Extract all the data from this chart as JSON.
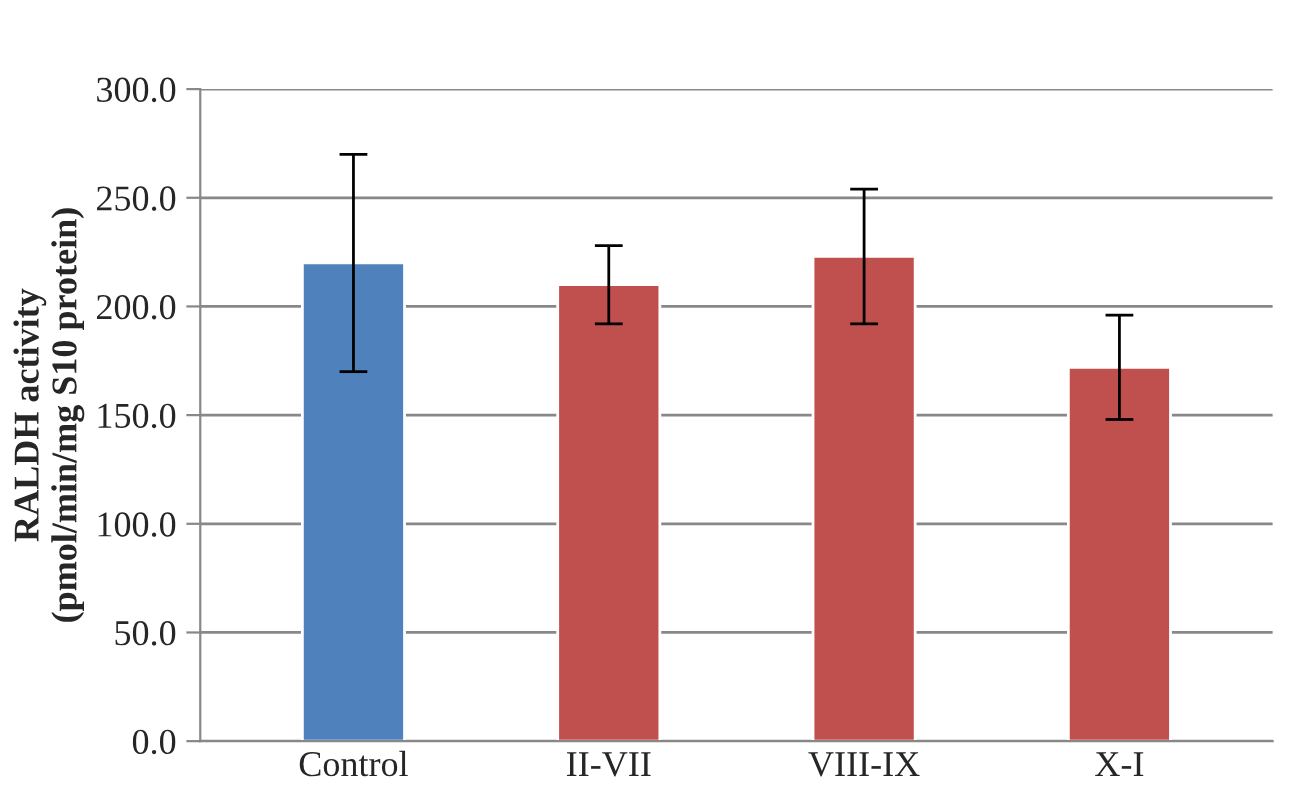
{
  "chart_data": {
    "type": "bar",
    "ylabel": "RALDH activity\n(pmol/min/mg S10 protein)",
    "categories": [
      "Control",
      "II-VII",
      "VIII-IX",
      "X-I"
    ],
    "values": [
      220,
      210,
      223,
      172
    ],
    "colors": [
      "#4f81bd",
      "#c0504d",
      "#c0504d",
      "#c0504d"
    ],
    "errors": [
      50,
      18,
      31,
      24
    ],
    "ylim": [
      0,
      300
    ],
    "yticks": [
      {
        "value": 0,
        "label": "0.0"
      },
      {
        "value": 50,
        "label": "50.0"
      },
      {
        "value": 100,
        "label": "100.0"
      },
      {
        "value": 150,
        "label": "150.0"
      },
      {
        "value": 200,
        "label": "200.0"
      },
      {
        "value": 250,
        "label": "250.0"
      },
      {
        "value": 300,
        "label": "300.0"
      }
    ],
    "grid": "y"
  }
}
